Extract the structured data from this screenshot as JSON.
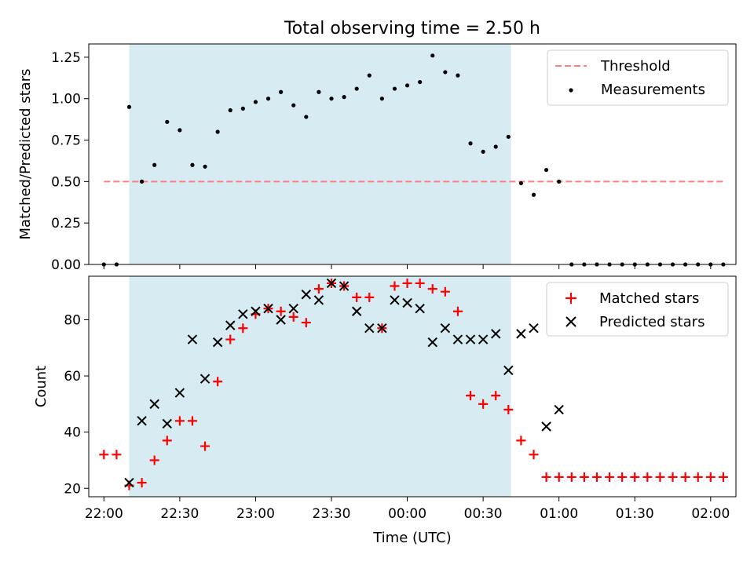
{
  "title": "Total observing time = 2.50 h",
  "colors": {
    "band": "#add8e6",
    "threshold": "#ff7f7f",
    "matched": "#ff0000",
    "predicted": "#000000",
    "measurement": "#000000"
  },
  "chart_data": [
    {
      "type": "scatter",
      "panel": "top",
      "ylabel": "Matched/Predicted stars",
      "ylim": [
        0,
        1.33
      ],
      "yticks": [
        0.0,
        0.25,
        0.5,
        0.75,
        1.0,
        1.25
      ],
      "ytick_labels": [
        "0.00",
        "0.25",
        "0.50",
        "0.75",
        "1.00",
        "1.25"
      ],
      "xlim": [
        "21:54",
        "02:10"
      ],
      "highlight_span": [
        "22:10",
        "00:41"
      ],
      "legend_position": "top-right",
      "legend": [
        {
          "label": "Threshold",
          "marker": "dashed-line"
        },
        {
          "label": "Measurements",
          "marker": "dot"
        }
      ],
      "threshold": {
        "name": "Threshold",
        "x": [
          "22:00",
          "02:05"
        ],
        "y": 0.5
      },
      "series": [
        {
          "name": "Measurements",
          "marker": "dot",
          "x": [
            "22:00",
            "22:05",
            "22:10",
            "22:15",
            "22:20",
            "22:25",
            "22:30",
            "22:35",
            "22:40",
            "22:45",
            "22:50",
            "22:55",
            "23:00",
            "23:05",
            "23:10",
            "23:15",
            "23:20",
            "23:25",
            "23:30",
            "23:35",
            "23:40",
            "23:45",
            "23:50",
            "23:55",
            "00:00",
            "00:05",
            "00:10",
            "00:15",
            "00:20",
            "00:25",
            "00:30",
            "00:35",
            "00:40",
            "00:45",
            "00:50",
            "00:55",
            "01:00",
            "01:05",
            "01:10",
            "01:15",
            "01:20",
            "01:25",
            "01:30",
            "01:35",
            "01:40",
            "01:45",
            "01:50",
            "01:55",
            "02:00",
            "02:05"
          ],
          "y": [
            0.0,
            0.0,
            0.95,
            0.5,
            0.6,
            0.86,
            0.81,
            0.6,
            0.59,
            0.8,
            0.93,
            0.94,
            0.98,
            1.0,
            1.04,
            0.96,
            0.89,
            1.04,
            1.0,
            1.01,
            1.06,
            1.14,
            1.0,
            1.06,
            1.08,
            1.1,
            1.26,
            1.16,
            1.14,
            0.73,
            0.68,
            0.71,
            0.77,
            0.49,
            0.42,
            0.57,
            0.5,
            0.0,
            0.0,
            0.0,
            0.0,
            0.0,
            0.0,
            0.0,
            0.0,
            0.0,
            0.0,
            0.0,
            0.0,
            0.0
          ]
        }
      ]
    },
    {
      "type": "scatter",
      "panel": "bottom",
      "xlabel": "Time (UTC)",
      "ylabel": "Count",
      "ylim": [
        17,
        95.5
      ],
      "yticks": [
        20,
        40,
        60,
        80
      ],
      "ytick_labels": [
        "20",
        "40",
        "60",
        "80"
      ],
      "xlim": [
        "21:54",
        "02:10"
      ],
      "xticks": [
        "22:00",
        "22:30",
        "23:00",
        "23:30",
        "00:00",
        "00:30",
        "01:00",
        "01:30",
        "02:00"
      ],
      "xtick_labels": [
        "22:00",
        "22:30",
        "23:00",
        "23:30",
        "00:00",
        "00:30",
        "01:00",
        "01:30",
        "02:00"
      ],
      "highlight_span": [
        "22:10",
        "00:41"
      ],
      "legend_position": "top-right",
      "legend": [
        {
          "label": "Matched stars",
          "marker": "plus"
        },
        {
          "label": "Predicted stars",
          "marker": "x"
        }
      ],
      "series": [
        {
          "name": "Matched stars",
          "marker": "plus",
          "x": [
            "22:00",
            "22:05",
            "22:10",
            "22:15",
            "22:20",
            "22:25",
            "22:30",
            "22:35",
            "22:40",
            "22:45",
            "22:50",
            "22:55",
            "23:00",
            "23:05",
            "23:10",
            "23:15",
            "23:20",
            "23:25",
            "23:30",
            "23:35",
            "23:40",
            "23:45",
            "23:50",
            "23:55",
            "00:00",
            "00:05",
            "00:10",
            "00:15",
            "00:20",
            "00:25",
            "00:30",
            "00:35",
            "00:40",
            "00:45",
            "00:50",
            "00:55",
            "01:00",
            "01:05",
            "01:10",
            "01:15",
            "01:20",
            "01:25",
            "01:30",
            "01:35",
            "01:40",
            "01:45",
            "01:50",
            "01:55",
            "02:00",
            "02:05"
          ],
          "y": [
            32,
            32,
            21,
            22,
            30,
            37,
            44,
            44,
            35,
            58,
            73,
            77,
            82,
            84,
            83,
            81,
            79,
            91,
            93,
            92,
            88,
            88,
            77,
            92,
            93,
            93,
            91,
            90,
            83,
            53,
            50,
            53,
            48,
            37,
            32,
            24,
            24,
            24,
            24,
            24,
            24,
            24,
            24,
            24,
            24,
            24,
            24,
            24,
            24,
            24
          ]
        },
        {
          "name": "Predicted stars",
          "marker": "x",
          "x": [
            "22:10",
            "22:15",
            "22:20",
            "22:25",
            "22:30",
            "22:35",
            "22:40",
            "22:45",
            "22:50",
            "22:55",
            "23:00",
            "23:05",
            "23:10",
            "23:15",
            "23:20",
            "23:25",
            "23:30",
            "23:35",
            "23:40",
            "23:45",
            "23:50",
            "23:55",
            "00:00",
            "00:05",
            "00:10",
            "00:15",
            "00:20",
            "00:25",
            "00:30",
            "00:35",
            "00:40",
            "00:45",
            "00:50",
            "00:55",
            "01:00"
          ],
          "y": [
            22,
            44,
            50,
            43,
            54,
            73,
            59,
            72,
            78,
            82,
            83,
            84,
            80,
            84,
            89,
            87,
            93,
            92,
            83,
            77,
            77,
            87,
            86,
            84,
            72,
            77,
            73,
            73,
            73,
            75,
            62,
            75,
            77,
            42,
            48
          ]
        }
      ]
    }
  ]
}
